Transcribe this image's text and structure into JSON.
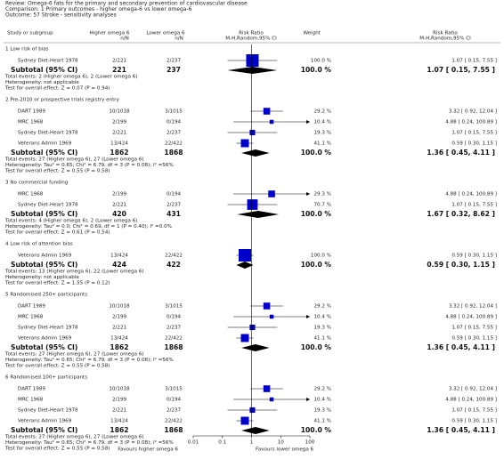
{
  "chart_data": {
    "type": "forest",
    "header": [
      "Review:   Omega-6 fats for the primary and secondary prevention of cardiovascular disease",
      "Comparison:   1 Primary outcomes - higher omega-6 vs lower omega-6",
      "Outcome:   57 Stroke - sensitivity analyses"
    ],
    "columns": {
      "study": "Study or subgroup",
      "higher": "Higher omega 6",
      "higher_sub": "n/N",
      "lower": "Lower omega 6",
      "lower_sub": "n/N",
      "plot": "Risk Ratio",
      "plot_sub": "M-H,Random,95% CI",
      "weight": "Weight",
      "ratio": "Risk Ratio",
      "ratio_sub": "M-H,Random,95% CI"
    },
    "xlim": [
      0.01,
      100
    ],
    "xticks": [
      0.01,
      0.1,
      1,
      10,
      100
    ],
    "log_scale": true,
    "box_color": "#0000cc",
    "diamond_color": "#000000",
    "favours_left": "Favours higher omega 6",
    "favours_right": "Favours lower omega 6",
    "subgroups": [
      {
        "name": "1 Low risk of bias",
        "studies": [
          {
            "name": "Sydney Diet-Heart 1978",
            "higher": "2/221",
            "lower": "2/237",
            "weight": 100.0,
            "weight_label": "100.0 %",
            "rr": 1.07,
            "lo": 0.15,
            "hi": 7.55,
            "ci_label": "1.07 [ 0.15, 7.55 ]"
          }
        ],
        "subtotal": {
          "label": "Subtotal (95% CI)",
          "higher": 221,
          "lower": 237,
          "weight_label": "100.0 %",
          "rr": 1.07,
          "lo": 0.15,
          "hi": 7.55,
          "ci_label": "1.07 [ 0.15, 7.55 ]"
        },
        "notes": [
          "Total events: 2 (Higher omega 6), 2 (Lower omega 6)",
          "Heterogeneity: not applicable",
          "Test for overall effect: Z = 0.07 (P = 0.94)"
        ]
      },
      {
        "name": "2 Pre-2010 or prospective trials registry entry",
        "studies": [
          {
            "name": "DART 1989",
            "higher": "10/1018",
            "lower": "3/1015",
            "weight": 29.2,
            "weight_label": "29.2 %",
            "rr": 3.32,
            "lo": 0.92,
            "hi": 12.04,
            "ci_label": "3.32 [ 0.92, 12.04 ]"
          },
          {
            "name": "MRC 1968",
            "higher": "2/199",
            "lower": "0/194",
            "weight": 10.4,
            "weight_label": "10.4 %",
            "rr": 4.88,
            "lo": 0.24,
            "hi": 100.89,
            "ci_label": "4.88 [ 0.24, 100.89 ]"
          },
          {
            "name": "Sydney Diet-Heart 1978",
            "higher": "2/221",
            "lower": "2/237",
            "weight": 19.3,
            "weight_label": "19.3 %",
            "rr": 1.07,
            "lo": 0.15,
            "hi": 7.55,
            "ci_label": "1.07 [ 0.15, 7.55 ]"
          },
          {
            "name": "Veterans Admin 1969",
            "higher": "13/424",
            "lower": "22/422",
            "weight": 41.1,
            "weight_label": "41.1 %",
            "rr": 0.59,
            "lo": 0.3,
            "hi": 1.15,
            "ci_label": "0.59 [ 0.30, 1.15 ]"
          }
        ],
        "subtotal": {
          "label": "Subtotal (95% CI)",
          "higher": 1862,
          "lower": 1868,
          "weight_label": "100.0 %",
          "rr": 1.36,
          "lo": 0.45,
          "hi": 4.11,
          "ci_label": "1.36 [ 0.45, 4.11 ]"
        },
        "notes": [
          "Total events: 27 (Higher omega 6), 27 (Lower omega 6)",
          "Heterogeneity: Tau² = 0.65; Chi² = 6.79, df = 3 (P = 0.08); I² =56%",
          "Test for overall effect: Z = 0.55 (P = 0.58)"
        ]
      },
      {
        "name": "3 No commercial funding",
        "studies": [
          {
            "name": "MRC 1968",
            "higher": "2/199",
            "lower": "0/194",
            "weight": 29.3,
            "weight_label": "29.3 %",
            "rr": 4.88,
            "lo": 0.24,
            "hi": 100.89,
            "ci_label": "4.88 [ 0.24, 100.89 ]"
          },
          {
            "name": "Sydney Diet-Heart 1978",
            "higher": "2/221",
            "lower": "2/237",
            "weight": 70.7,
            "weight_label": "70.7 %",
            "rr": 1.07,
            "lo": 0.15,
            "hi": 7.55,
            "ci_label": "1.07 [ 0.15, 7.55 ]"
          }
        ],
        "subtotal": {
          "label": "Subtotal (95% CI)",
          "higher": 420,
          "lower": 431,
          "weight_label": "100.0 %",
          "rr": 1.67,
          "lo": 0.32,
          "hi": 8.62,
          "ci_label": "1.67 [ 0.32, 8.62 ]"
        },
        "notes": [
          "Total events: 4 (Higher omega 6), 2 (Lower omega 6)",
          "Heterogeneity: Tau² = 0.0; Chi² = 0.69, df = 1 (P = 0.40); I² =0.0%",
          "Test for overall effect: Z = 0.61 (P = 0.54)"
        ]
      },
      {
        "name": "4 Low risk of attention bias",
        "studies": [
          {
            "name": "Veterans Admin 1969",
            "higher": "13/424",
            "lower": "22/422",
            "weight": 100.0,
            "weight_label": "100.0 %",
            "rr": 0.59,
            "lo": 0.3,
            "hi": 1.15,
            "ci_label": "0.59 [ 0.30, 1.15 ]"
          }
        ],
        "subtotal": {
          "label": "Subtotal (95% CI)",
          "higher": 424,
          "lower": 422,
          "weight_label": "100.0 %",
          "rr": 0.59,
          "lo": 0.3,
          "hi": 1.15,
          "ci_label": "0.59 [ 0.30, 1.15 ]"
        },
        "notes": [
          "Total events: 13 (Higher omega 6), 22 (Lower omega 6)",
          "Heterogeneity: not applicable",
          "Test for overall effect: Z = 1.55 (P = 0.12)"
        ]
      },
      {
        "name": "5 Randomised 250+ participants",
        "studies": [
          {
            "name": "DART 1989",
            "higher": "10/1018",
            "lower": "3/1015",
            "weight": 29.2,
            "weight_label": "29.2 %",
            "rr": 3.32,
            "lo": 0.92,
            "hi": 12.04,
            "ci_label": "3.32 [ 0.92, 12.04 ]"
          },
          {
            "name": "MRC 1968",
            "higher": "2/199",
            "lower": "0/194",
            "weight": 10.4,
            "weight_label": "10.4 %",
            "rr": 4.88,
            "lo": 0.24,
            "hi": 100.89,
            "ci_label": "4.88 [ 0.24, 100.89 ]"
          },
          {
            "name": "Sydney Diet-Heart 1978",
            "higher": "2/221",
            "lower": "2/237",
            "weight": 19.3,
            "weight_label": "19.3 %",
            "rr": 1.07,
            "lo": 0.15,
            "hi": 7.55,
            "ci_label": "1.07 [ 0.15, 7.55 ]"
          },
          {
            "name": "Veterans Admin 1969",
            "higher": "13/424",
            "lower": "22/422",
            "weight": 41.1,
            "weight_label": "41.1 %",
            "rr": 0.59,
            "lo": 0.3,
            "hi": 1.15,
            "ci_label": "0.59 [ 0.30, 1.15 ]"
          }
        ],
        "subtotal": {
          "label": "Subtotal (95% CI)",
          "higher": 1862,
          "lower": 1868,
          "weight_label": "100.0 %",
          "rr": 1.36,
          "lo": 0.45,
          "hi": 4.11,
          "ci_label": "1.36 [ 0.45, 4.11 ]"
        },
        "notes": [
          "Total events: 27 (Higher omega 6), 27 (Lower omega 6)",
          "Heterogeneity: Tau² = 0.65; Chi² = 6.79, df = 3 (P = 0.08); I² =56%",
          "Test for overall effect: Z = 0.55 (P = 0.58)"
        ]
      },
      {
        "name": "6 Randomised 100+ participants",
        "studies": [
          {
            "name": "DART 1989",
            "higher": "10/1018",
            "lower": "3/1015",
            "weight": 29.2,
            "weight_label": "29.2 %",
            "rr": 3.32,
            "lo": 0.92,
            "hi": 12.04,
            "ci_label": "3.32 [ 0.92, 12.04 ]"
          },
          {
            "name": "MRC 1968",
            "higher": "2/199",
            "lower": "0/194",
            "weight": 10.4,
            "weight_label": "10.4 %",
            "rr": 4.88,
            "lo": 0.24,
            "hi": 100.89,
            "ci_label": "4.88 [ 0.24, 100.89 ]"
          },
          {
            "name": "Sydney Diet-Heart 1978",
            "higher": "2/221",
            "lower": "2/237",
            "weight": 19.3,
            "weight_label": "19.3 %",
            "rr": 1.07,
            "lo": 0.15,
            "hi": 7.55,
            "ci_label": "1.07 [ 0.15, 7.55 ]"
          },
          {
            "name": "Veterans Admin 1969",
            "higher": "13/424",
            "lower": "22/422",
            "weight": 41.1,
            "weight_label": "41.1 %",
            "rr": 0.59,
            "lo": 0.3,
            "hi": 1.15,
            "ci_label": "0.59 [ 0.30, 1.15 ]"
          }
        ],
        "subtotal": {
          "label": "Subtotal (95% CI)",
          "higher": 1862,
          "lower": 1868,
          "weight_label": "100.0 %",
          "rr": 1.36,
          "lo": 0.45,
          "hi": 4.11,
          "ci_label": "1.36 [ 0.45, 4.11 ]"
        },
        "notes": [
          "Total events: 27 (Higher omega 6), 27 (Lower omega 6)",
          "Heterogeneity: Tau² = 0.65; Chi² = 6.79, df = 3 (P = 0.08); I² =56%",
          "Test for overall effect: Z = 0.55 (P = 0.58)"
        ]
      }
    ]
  }
}
